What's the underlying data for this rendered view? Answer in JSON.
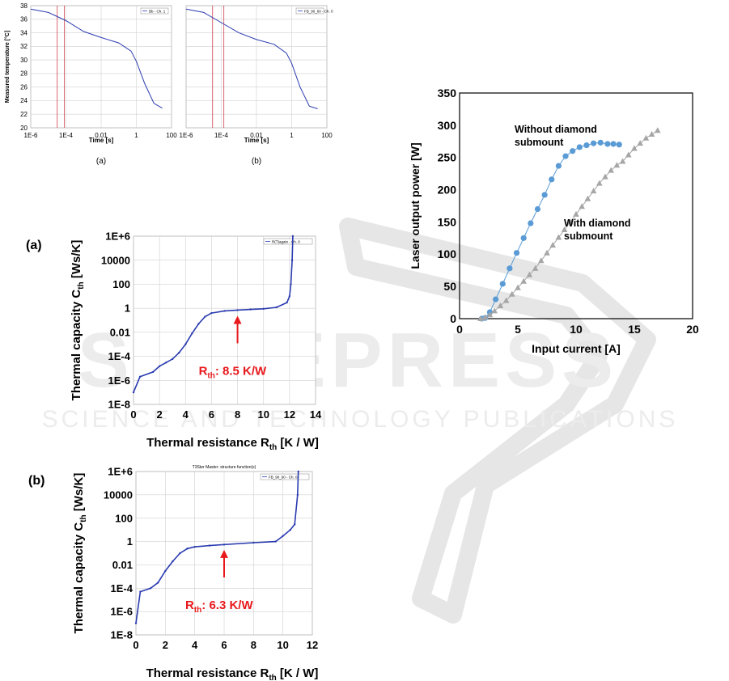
{
  "colors": {
    "blue_curve": "#2a3bb0",
    "red": "#e8191c",
    "diamond_blue": "#5a9bd5",
    "diamond_gray": "#a6a6a6",
    "watermark": "#e6e6e6"
  },
  "watermark": {
    "line1": "SCITEPRESS",
    "line2": "SCIENCE AND TECHNOLOGY PUBLICATIONS"
  },
  "chart_data": [
    {
      "id": "temp-a",
      "type": "line",
      "caption": "(a)",
      "xlabel": "Time [s]",
      "ylabel": "Measured temperature [°C]",
      "xscale": "log",
      "xlim": [
        1e-06,
        100
      ],
      "ylim": [
        20,
        38
      ],
      "xticks": [
        "1E-6",
        "1E-4",
        "0.01",
        "1",
        "100"
      ],
      "yticks": [
        "20",
        "22",
        "24",
        "26",
        "28",
        "30",
        "32",
        "34",
        "36",
        "38"
      ],
      "legend": "Bb - Ch. 1",
      "vlines_x": [
        8e-05,
        3.2e-05
      ],
      "series": [
        {
          "x": [
            1e-06,
            1e-05,
            0.0001,
            0.001,
            0.01,
            0.1,
            0.5,
            1,
            3,
            10,
            30
          ],
          "y": [
            37.5,
            37.0,
            35.8,
            34.2,
            33.3,
            32.5,
            31.3,
            29.8,
            26.5,
            23.6,
            22.9
          ]
        }
      ]
    },
    {
      "id": "temp-b",
      "type": "line",
      "caption": "(b)",
      "xlabel": "Time [s]",
      "xscale": "log",
      "xlim": [
        1e-06,
        100
      ],
      "ylim": [
        20,
        38
      ],
      "xticks": [
        "1E-6",
        "1E-4",
        "0.01",
        "1",
        "100"
      ],
      "legend": "FB_90_60 - Ch. 0",
      "vlines_x": [
        3.2e-05,
        0.00014
      ],
      "series": [
        {
          "x": [
            1e-06,
            1e-05,
            0.0001,
            0.001,
            0.01,
            0.1,
            0.5,
            1,
            3,
            10,
            30
          ],
          "y": [
            37.5,
            37.0,
            35.5,
            34.0,
            33.0,
            32.3,
            31.0,
            29.5,
            26.0,
            23.2,
            22.8
          ]
        }
      ]
    },
    {
      "id": "struct-a",
      "type": "line",
      "caption": "(a)",
      "xlabel": "Thermal resistance R",
      "xlabel_sub": "th",
      "xlabel_unit": " [K / W]",
      "ylabel": "Thermal capacity C",
      "ylabel_sub": "th",
      "ylabel_unit": " [Ws/K]",
      "xlim": [
        0,
        14
      ],
      "xticks": [
        "0",
        "2",
        "4",
        "6",
        "8",
        "10",
        "12",
        "14"
      ],
      "yscale": "log",
      "ylim": [
        1e-08,
        1000000.0
      ],
      "yticks": [
        "1E-8",
        "1E-6",
        "1E-4",
        "0.01",
        "1",
        "100",
        "10000",
        "1E+6"
      ],
      "legend": "R(T)again - Ch. 0",
      "annotation": {
        "prefix": "R",
        "sub": "th",
        "text": ": 8.5 K/W",
        "x": 8.0,
        "y": 0.6
      },
      "series": [
        {
          "x": [
            0,
            0.5,
            1.5,
            2.0,
            2.5,
            3.0,
            3.5,
            4.0,
            4.5,
            5.0,
            5.5,
            6.0,
            7.0,
            8.0,
            9.0,
            10.0,
            11.0,
            11.8,
            12.0,
            12.1,
            12.2,
            12.25
          ],
          "y": [
            1e-07,
            2e-06,
            5e-06,
            1.5e-05,
            3e-05,
            6e-05,
            0.0002,
            0.001,
            0.008,
            0.05,
            0.2,
            0.4,
            0.6,
            0.7,
            0.8,
            0.9,
            1.2,
            3,
            10,
            100,
            10000.0,
            1000000.0
          ]
        }
      ]
    },
    {
      "id": "struct-b",
      "type": "line",
      "caption": "(b)",
      "title": "T3Ster Master: structure function(s)",
      "xlabel": "Thermal resistance R",
      "xlabel_sub": "th",
      "xlabel_unit": " [K / W]",
      "ylabel": "Thermal capacity C",
      "ylabel_sub": "th",
      "ylabel_unit": " [Ws/K]",
      "xlim": [
        0,
        12
      ],
      "xticks": [
        "0",
        "2",
        "4",
        "6",
        "8",
        "10",
        "12"
      ],
      "yscale": "log",
      "ylim": [
        1e-08,
        1000000.0
      ],
      "yticks": [
        "1E-8",
        "1E-6",
        "1E-4",
        "0.01",
        "1",
        "100",
        "10000",
        "1E+6"
      ],
      "legend": "FB_90_60 - Ch. 0",
      "annotation": {
        "prefix": "R",
        "sub": "th",
        "text": ": 6.3 K/W",
        "x": 6.0,
        "y": 0.5
      },
      "series": [
        {
          "x": [
            0,
            0.3,
            1.0,
            1.5,
            2.0,
            2.5,
            3.0,
            3.5,
            4.0,
            5.0,
            6.0,
            8.0,
            9.5,
            10.0,
            10.5,
            10.8,
            11.0,
            11.05
          ],
          "y": [
            1e-07,
            5e-05,
            0.0001,
            0.0003,
            0.003,
            0.02,
            0.1,
            0.25,
            0.35,
            0.45,
            0.55,
            0.8,
            1.0,
            3.0,
            10,
            30,
            10000.0,
            1000000.0
          ]
        }
      ]
    },
    {
      "id": "lasers",
      "type": "scatter",
      "xlabel": "Input current [A]",
      "ylabel": "Laser output power [W]",
      "xlim": [
        0,
        20
      ],
      "ylim": [
        0,
        350
      ],
      "xticks": [
        "0",
        "5",
        "10",
        "15",
        "20"
      ],
      "yticks": [
        "0",
        "50",
        "100",
        "150",
        "200",
        "250",
        "300",
        "350"
      ],
      "series": [
        {
          "label_line1": "Without diamond",
          "label_line2": "submount",
          "x": [
            1.9,
            2.2,
            2.6,
            3.1,
            3.7,
            4.3,
            4.9,
            5.5,
            6.1,
            6.7,
            7.3,
            7.9,
            8.5,
            9.1,
            9.7,
            10.3,
            10.9,
            11.5,
            12.1,
            12.7,
            13.2,
            13.7
          ],
          "y": [
            0,
            1,
            10,
            30,
            54,
            78,
            102,
            125,
            148,
            170,
            192,
            216,
            237,
            252,
            260,
            266,
            269,
            272,
            273,
            271,
            271,
            270
          ]
        },
        {
          "label_line1": "With diamond",
          "label_line2": "submount",
          "x": [
            1.8,
            2.2,
            2.6,
            3.0,
            3.5,
            4.0,
            4.5,
            5.0,
            5.5,
            6.0,
            6.5,
            7.0,
            7.5,
            8.0,
            8.5,
            9.0,
            9.5,
            10.0,
            10.5,
            11.0,
            11.5,
            12.0,
            12.5,
            13.0,
            13.5,
            14.0,
            14.5,
            15.0,
            15.5,
            16.0,
            16.5,
            17.0
          ],
          "y": [
            0,
            2,
            6,
            12,
            20,
            28,
            38,
            48,
            58,
            68,
            78,
            90,
            102,
            114,
            126,
            138,
            150,
            162,
            174,
            186,
            198,
            210,
            220,
            230,
            238,
            244,
            254,
            264,
            272,
            280,
            286,
            292
          ]
        }
      ]
    }
  ]
}
